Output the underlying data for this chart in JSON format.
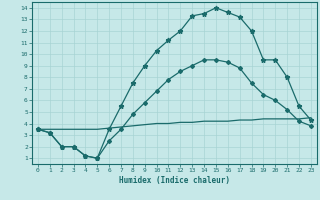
{
  "xlabel": "Humidex (Indice chaleur)",
  "bg_color": "#c6e8e8",
  "line_color": "#1a6b6b",
  "grid_color": "#a8d4d4",
  "xlim": [
    -0.5,
    23.5
  ],
  "ylim": [
    0.5,
    14.5
  ],
  "xticks": [
    0,
    1,
    2,
    3,
    4,
    5,
    6,
    7,
    8,
    9,
    10,
    11,
    12,
    13,
    14,
    15,
    16,
    17,
    18,
    19,
    20,
    21,
    22,
    23
  ],
  "yticks": [
    1,
    2,
    3,
    4,
    5,
    6,
    7,
    8,
    9,
    10,
    11,
    12,
    13,
    14
  ],
  "line1_x": [
    0,
    1,
    2,
    3,
    4,
    5,
    6,
    7,
    8,
    9,
    10,
    11,
    12,
    13,
    14,
    15,
    16,
    17,
    18,
    19,
    20,
    21,
    22,
    23
  ],
  "line1_y": [
    3.5,
    3.2,
    2.0,
    2.0,
    1.2,
    1.0,
    3.5,
    5.5,
    7.5,
    9.0,
    10.3,
    11.2,
    12.0,
    13.3,
    13.5,
    14.0,
    13.6,
    13.2,
    12.0,
    9.5,
    9.5,
    8.0,
    5.5,
    4.3
  ],
  "line2_x": [
    0,
    1,
    2,
    3,
    4,
    5,
    6,
    7,
    8,
    9,
    10,
    11,
    12,
    13,
    14,
    15,
    16,
    17,
    18,
    19,
    20,
    21,
    22,
    23
  ],
  "line2_y": [
    3.5,
    3.5,
    3.5,
    3.5,
    3.5,
    3.5,
    3.6,
    3.7,
    3.8,
    3.9,
    4.0,
    4.0,
    4.1,
    4.1,
    4.2,
    4.2,
    4.2,
    4.3,
    4.3,
    4.4,
    4.4,
    4.4,
    4.4,
    4.5
  ],
  "line3_x": [
    0,
    1,
    2,
    3,
    4,
    5,
    6,
    7,
    8,
    9,
    10,
    11,
    12,
    13,
    14,
    15,
    16,
    17,
    18,
    19,
    20,
    21,
    22,
    23
  ],
  "line3_y": [
    3.5,
    3.2,
    2.0,
    2.0,
    1.2,
    1.0,
    2.5,
    3.5,
    4.8,
    5.8,
    6.8,
    7.8,
    8.5,
    9.0,
    9.5,
    9.5,
    9.3,
    8.8,
    7.5,
    6.5,
    6.0,
    5.2,
    4.2,
    3.8
  ]
}
